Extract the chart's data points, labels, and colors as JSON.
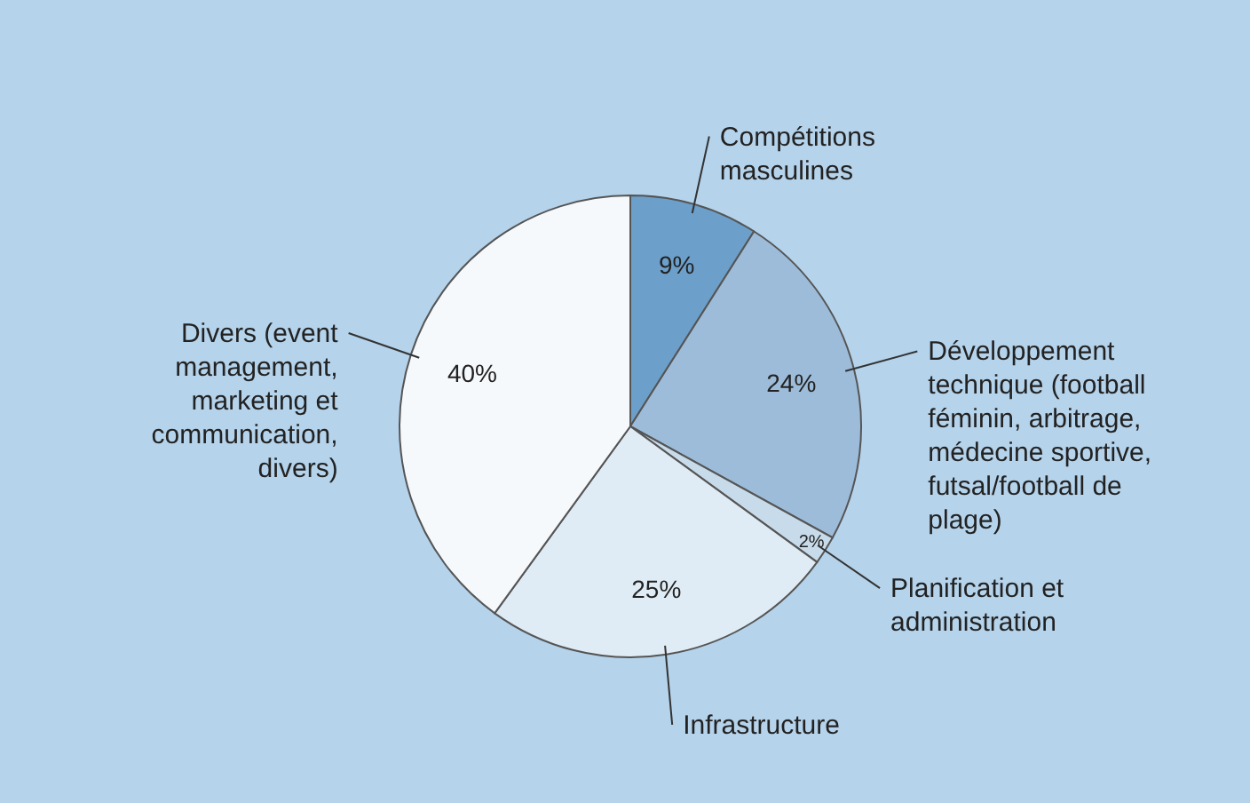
{
  "chart_data": {
    "type": "pie",
    "categories": [
      "Compétitions masculines",
      "Développement technique (football féminin, arbitrage, médecine sportive, futsal/football de plage)",
      "Planification et administration",
      "Infrastructure",
      "Divers (event management, marketing et communication, divers)"
    ],
    "values": [
      9,
      24,
      2,
      25,
      40
    ],
    "colors": [
      "#6c9fca",
      "#9dbcd9",
      "#c8dbea",
      "#e0ecf5",
      "#f6f9fc"
    ],
    "value_labels": [
      "9%",
      "24%",
      "2%",
      "25%",
      "40%"
    ]
  }
}
